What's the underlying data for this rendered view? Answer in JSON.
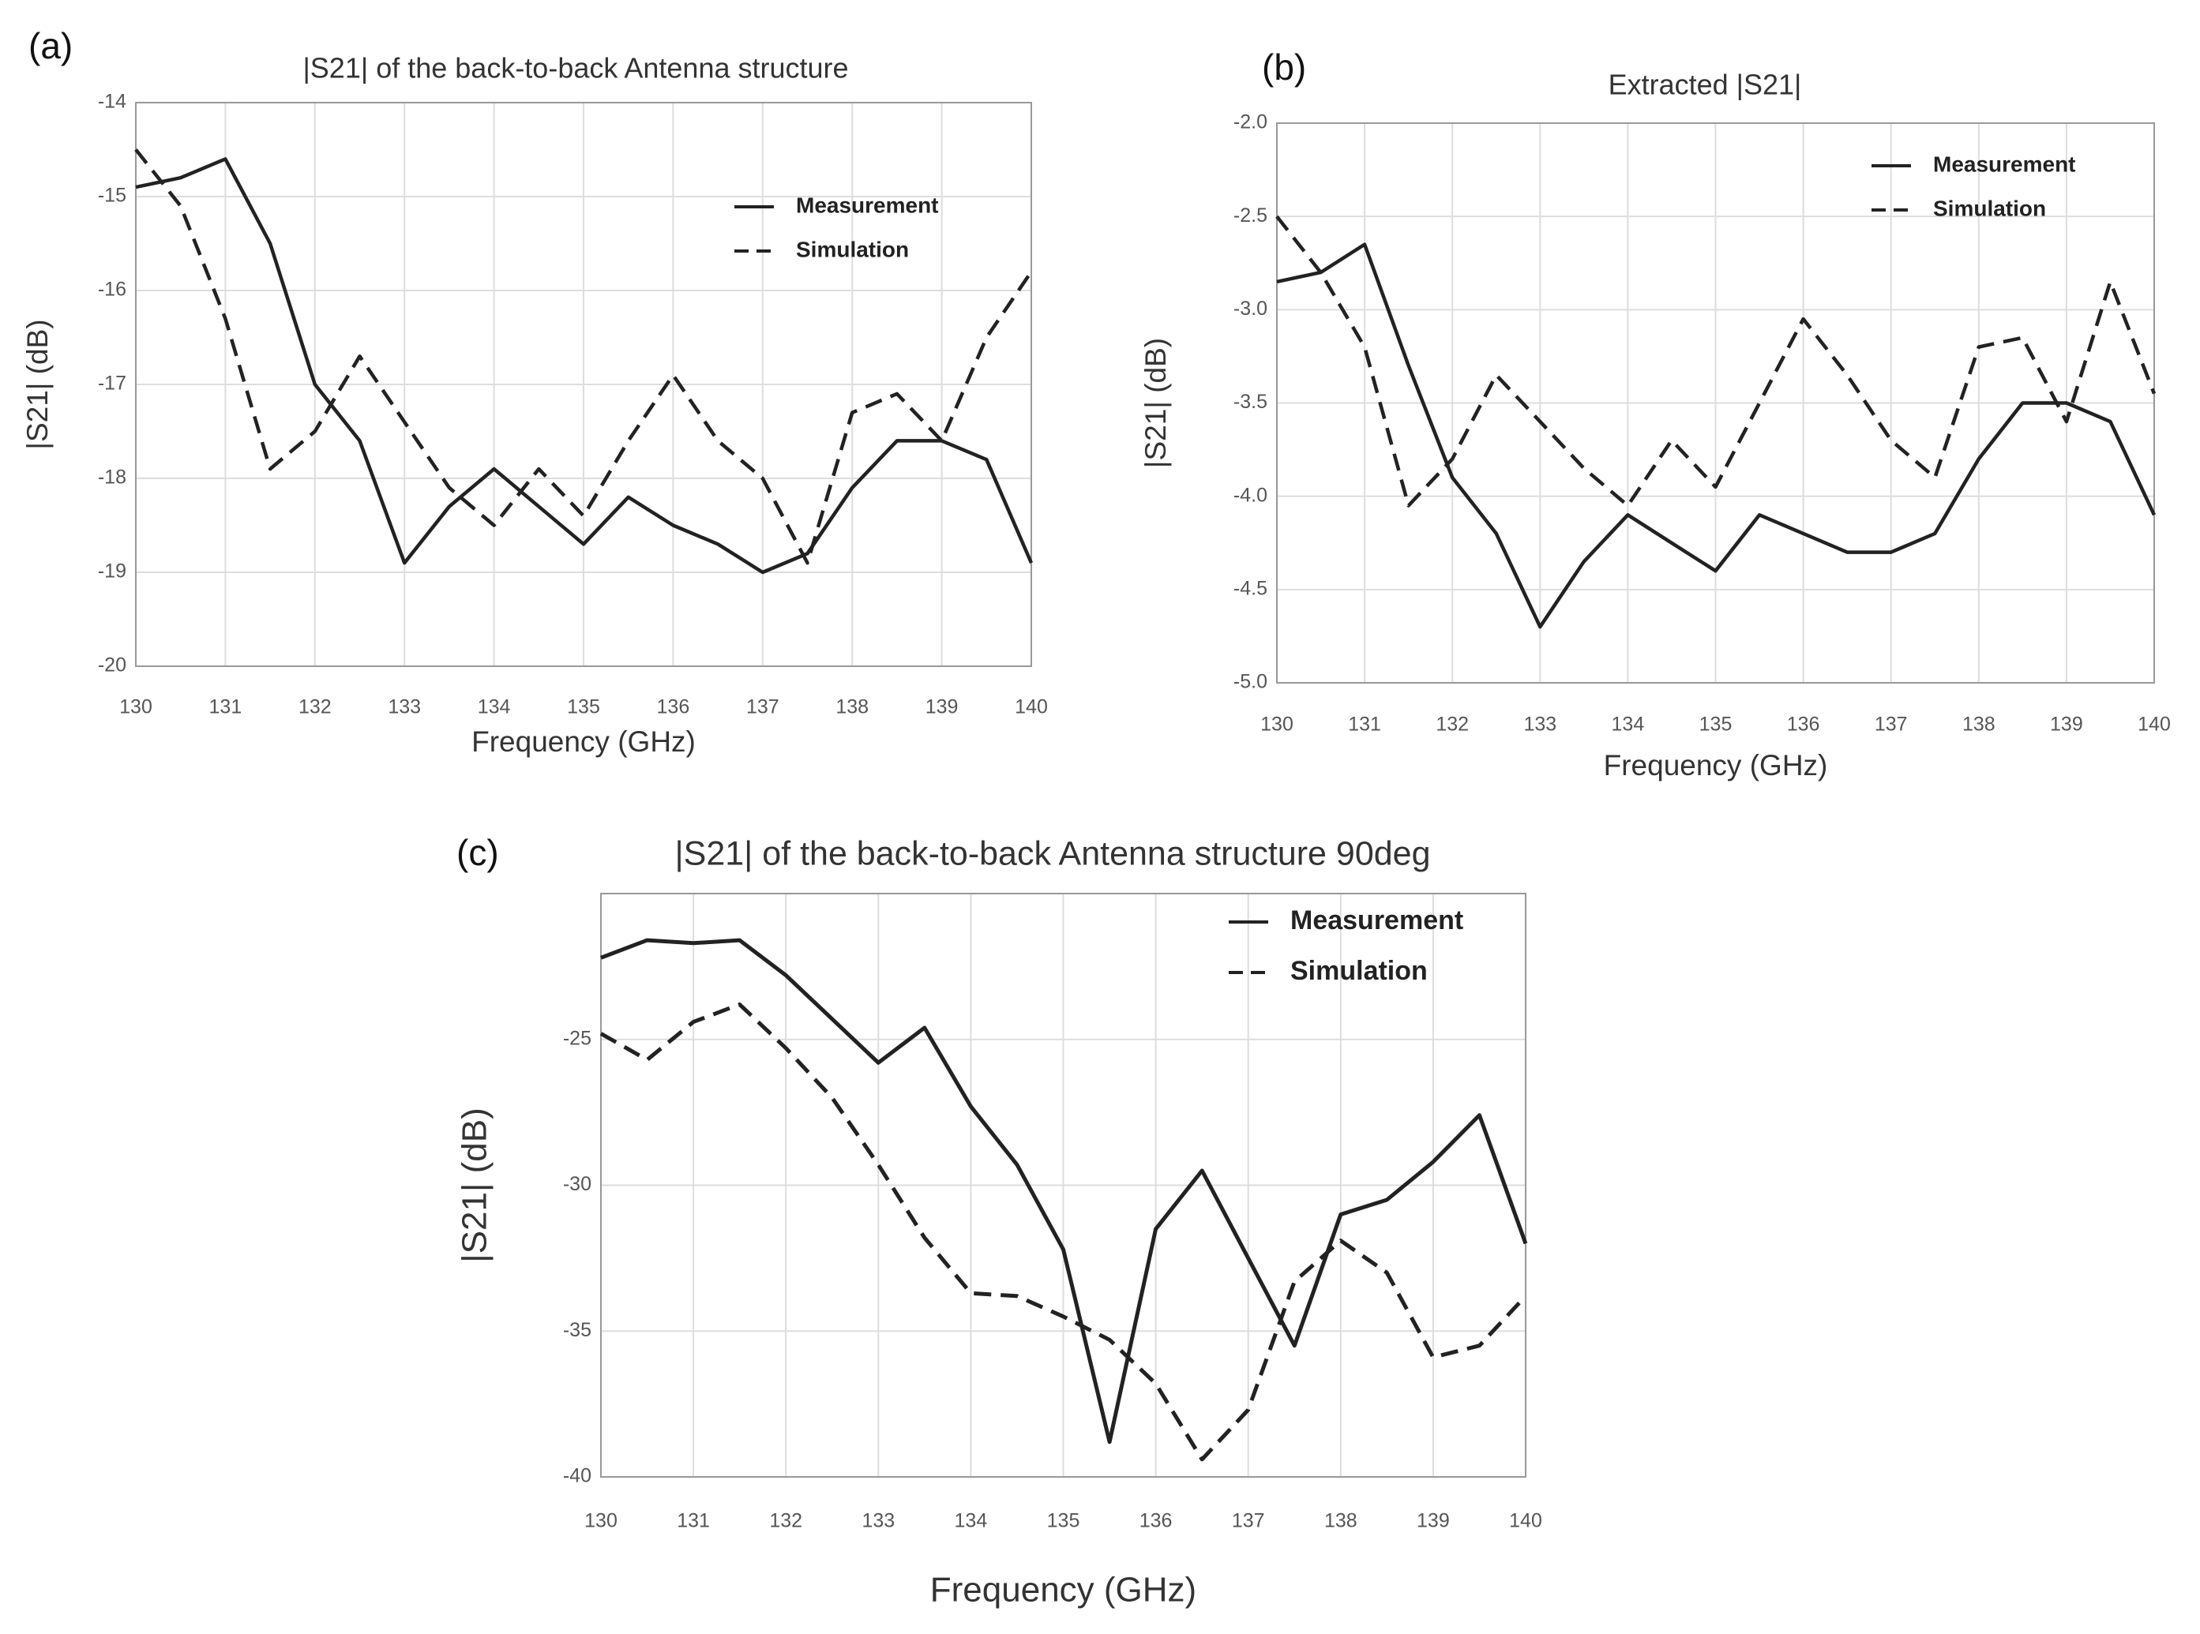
{
  "chart_data": [
    {
      "type": "line",
      "panel": "(a)",
      "title": "|S21| of the back-to-back Antenna structure",
      "xlabel": "Frequency (GHz)",
      "ylabel": "|S21| (dB)",
      "grid": true,
      "legend": "upper right",
      "x": [
        130,
        130.5,
        131,
        131.5,
        132,
        132.5,
        133,
        133.5,
        134,
        134.5,
        135,
        135.5,
        136,
        136.5,
        137,
        137.5,
        138,
        138.5,
        139,
        139.5,
        140
      ],
      "xlim": [
        130,
        140
      ],
      "xticks": [
        130,
        131,
        132,
        133,
        134,
        135,
        136,
        137,
        138,
        139,
        140
      ],
      "ylim": [
        -20,
        -14
      ],
      "yticks": [
        -20,
        -19,
        -18,
        -17,
        -16,
        -15,
        -14
      ],
      "series": [
        {
          "name": "Measurement",
          "color": "#222222",
          "style": "solid",
          "values": [
            -14.9,
            -14.8,
            -14.6,
            -15.5,
            -17.0,
            -17.6,
            -18.9,
            -18.3,
            -17.9,
            -18.3,
            -18.7,
            -18.2,
            -18.5,
            -18.7,
            -19.0,
            -18.8,
            -18.1,
            -17.6,
            -17.6,
            -17.8,
            -18.9
          ]
        },
        {
          "name": "Simulation",
          "color": "#222222",
          "style": "dashed",
          "values": [
            -14.5,
            -15.1,
            -16.3,
            -17.9,
            -17.5,
            -16.7,
            -17.4,
            -18.1,
            -18.5,
            -17.9,
            -18.4,
            -17.6,
            -16.9,
            -17.6,
            -18.0,
            -18.9,
            -17.3,
            -17.1,
            -17.6,
            -16.5,
            -15.8
          ]
        }
      ]
    },
    {
      "type": "line",
      "panel": "(b)",
      "title": "Extracted |S21|",
      "xlabel": "Frequency (GHz)",
      "ylabel": "|S21| (dB)",
      "grid": true,
      "legend": "upper right",
      "x": [
        130,
        130.5,
        131,
        131.5,
        132,
        132.5,
        133,
        133.5,
        134,
        134.5,
        135,
        135.5,
        136,
        136.5,
        137,
        137.5,
        138,
        138.5,
        139,
        139.5,
        140
      ],
      "xlim": [
        130,
        140
      ],
      "xticks": [
        130,
        131,
        132,
        133,
        134,
        135,
        136,
        137,
        138,
        139,
        140
      ],
      "ylim": [
        -5,
        -2
      ],
      "yticks": [
        {
          "value": -5,
          "label": "-5.0"
        },
        -4.5,
        {
          "value": -4,
          "label": "-4.0"
        },
        -3.5,
        {
          "value": -3,
          "label": "-3.0"
        },
        -2.5,
        {
          "value": -2,
          "label": "-2.0"
        }
      ],
      "series": [
        {
          "name": "Measurement",
          "color": "#222222",
          "style": "solid",
          "values": [
            -2.85,
            -2.8,
            -2.65,
            -3.3,
            -3.9,
            -4.2,
            -4.7,
            -4.35,
            -4.1,
            -4.25,
            -4.4,
            -4.1,
            -4.2,
            -4.3,
            -4.3,
            -4.2,
            -3.8,
            -3.5,
            -3.5,
            -3.6,
            -4.1
          ]
        },
        {
          "name": "Simulation",
          "color": "#222222",
          "style": "dashed",
          "values": [
            -2.5,
            -2.8,
            -3.2,
            -4.05,
            -3.8,
            -3.35,
            -3.6,
            -3.85,
            -4.05,
            -3.7,
            -3.95,
            -3.5,
            -3.05,
            -3.35,
            -3.7,
            -3.9,
            -3.2,
            -3.15,
            -3.6,
            -2.85,
            -3.45
          ]
        }
      ]
    },
    {
      "type": "line",
      "panel": "(c)",
      "title": "|S21| of the back-to-back Antenna structure 90deg",
      "xlabel": "Frequency (GHz)",
      "ylabel": "|S21| (dB)",
      "grid": true,
      "legend": "upper right",
      "x": [
        130,
        130.5,
        131,
        131.5,
        132,
        132.5,
        133,
        133.5,
        134,
        134.5,
        135,
        135.5,
        136,
        136.5,
        137,
        137.5,
        138,
        138.5,
        139,
        139.5,
        140
      ],
      "xlim": [
        130,
        140
      ],
      "xticks": [
        130,
        131,
        132,
        133,
        134,
        135,
        136,
        137,
        138,
        139,
        140
      ],
      "ylim": [
        -40,
        -20
      ],
      "yticks": [
        -40,
        -35,
        -30,
        -25
      ],
      "series": [
        {
          "name": "Measurement",
          "color": "#222222",
          "style": "solid",
          "values": [
            -22.2,
            -21.6,
            -21.7,
            -21.6,
            -22.8,
            -24.3,
            -25.8,
            -24.6,
            -27.3,
            -29.3,
            -32.2,
            -38.8,
            -31.5,
            -29.5,
            -32.5,
            -35.5,
            -31.0,
            -30.5,
            -29.2,
            -27.6,
            -32.0
          ]
        },
        {
          "name": "Simulation",
          "color": "#222222",
          "style": "dashed",
          "values": [
            -24.8,
            -25.7,
            -24.4,
            -23.8,
            -25.3,
            -27.0,
            -29.3,
            -31.8,
            -33.7,
            -33.8,
            -34.5,
            -35.3,
            -36.8,
            -39.4,
            -37.7,
            -33.3,
            -31.9,
            -33.0,
            -35.9,
            -35.5,
            -33.8
          ]
        }
      ]
    }
  ]
}
